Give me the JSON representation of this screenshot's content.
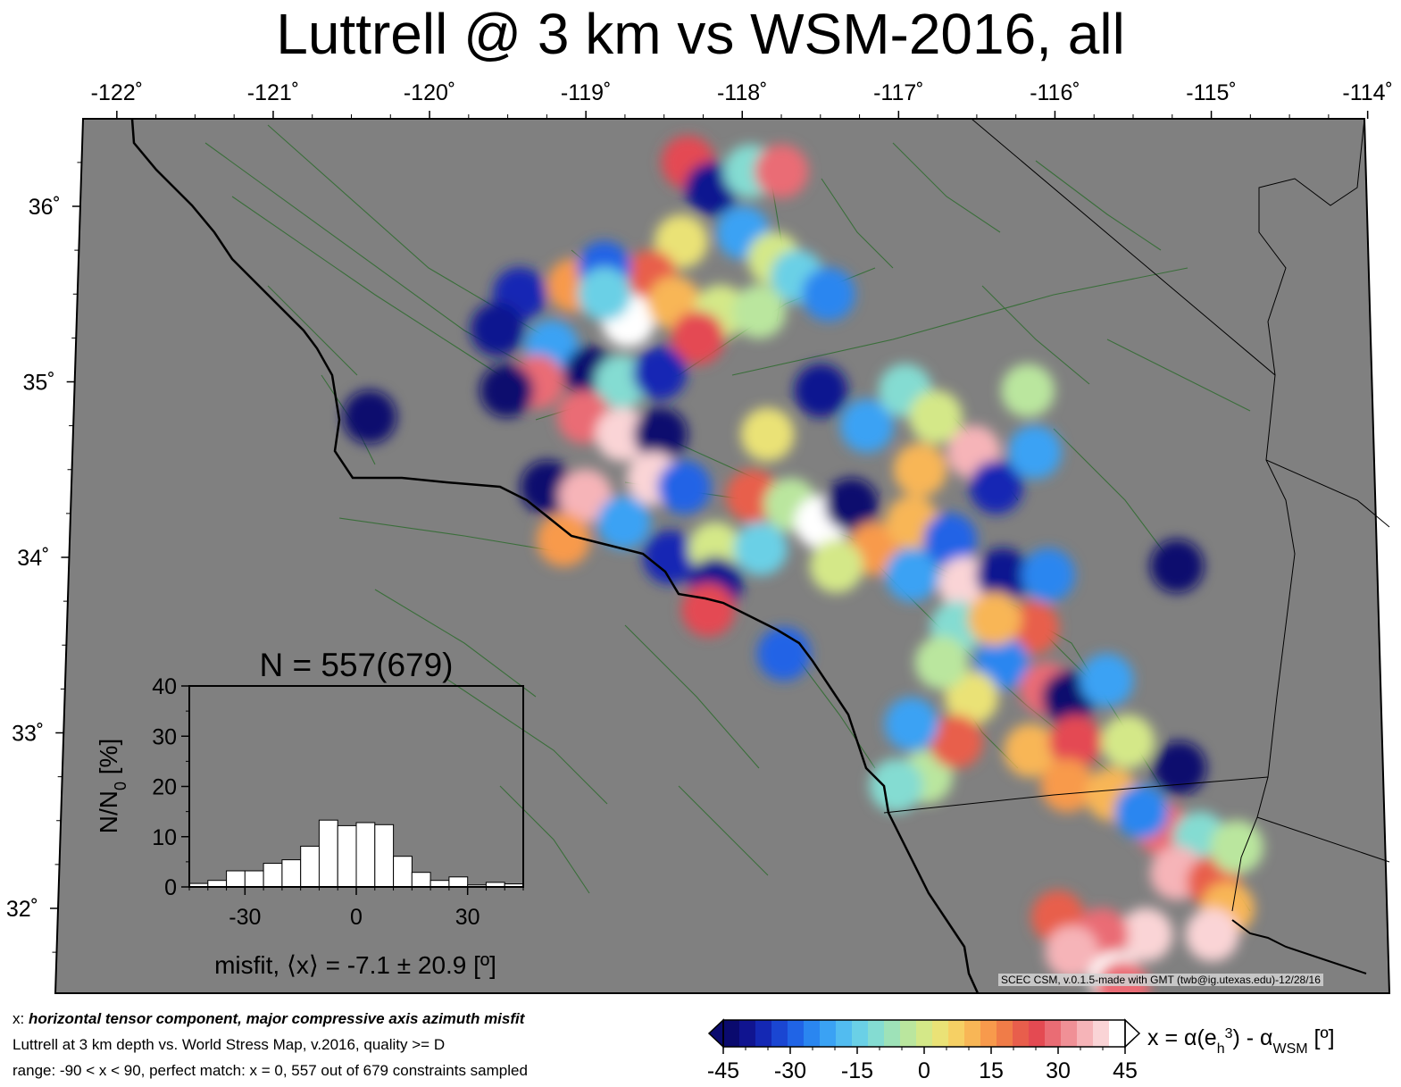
{
  "title": "Luttrell @ 3 km vs WSM-2016, all",
  "map": {
    "lon_ticks": [
      {
        "value": -122,
        "label": "-122˚"
      },
      {
        "value": -121,
        "label": "-121˚"
      },
      {
        "value": -120,
        "label": "-120˚"
      },
      {
        "value": -119,
        "label": "-119˚"
      },
      {
        "value": -118,
        "label": "-118˚"
      },
      {
        "value": -117,
        "label": "-117˚"
      },
      {
        "value": -116,
        "label": "-116˚"
      },
      {
        "value": -115,
        "label": "-115˚"
      },
      {
        "value": -114,
        "label": "-114˚"
      }
    ],
    "lat_ticks": [
      {
        "value": 36,
        "label": "36˚"
      },
      {
        "value": 35,
        "label": "35˚"
      },
      {
        "value": 34,
        "label": "34˚"
      },
      {
        "value": 33,
        "label": "33˚"
      },
      {
        "value": 32,
        "label": "32˚"
      }
    ],
    "background_color": "#808080",
    "fault_color": "#2e6b2e",
    "coast_color": "#000000",
    "credit": "SCEC CSM, v.0.1.5-made with GMT (twb@ig.utexas.edu)-12/28/16"
  },
  "histogram": {
    "title": "N = 557(679)",
    "ylabel_main": "N/N",
    "ylabel_sub": "0",
    "ylabel_unit": " [%]",
    "xlabel": "misfit, ⟨x⟩ = -7.1 ± 20.9 [º]",
    "xlim": [
      -45,
      45
    ],
    "ylim": [
      0,
      40
    ],
    "x_ticks": [
      {
        "value": -30,
        "label": "-30"
      },
      {
        "value": 0,
        "label": "0"
      },
      {
        "value": 30,
        "label": "30"
      }
    ],
    "y_ticks": [
      {
        "value": 0,
        "label": "0"
      },
      {
        "value": 10,
        "label": "10"
      },
      {
        "value": 20,
        "label": "20"
      },
      {
        "value": 30,
        "label": "30"
      },
      {
        "value": 40,
        "label": "40"
      }
    ],
    "bin_width": 5,
    "bins": [
      {
        "start": -45,
        "value": 0.7
      },
      {
        "start": -40,
        "value": 1.3
      },
      {
        "start": -35,
        "value": 3.2
      },
      {
        "start": -30,
        "value": 3.2
      },
      {
        "start": -25,
        "value": 4.7
      },
      {
        "start": -20,
        "value": 5.4
      },
      {
        "start": -15,
        "value": 8.1
      },
      {
        "start": -10,
        "value": 13.3
      },
      {
        "start": -5,
        "value": 12.2
      },
      {
        "start": 0,
        "value": 12.8
      },
      {
        "start": 5,
        "value": 12.4
      },
      {
        "start": 10,
        "value": 6.1
      },
      {
        "start": 15,
        "value": 2.9
      },
      {
        "start": 20,
        "value": 1.3
      },
      {
        "start": 25,
        "value": 2.0
      },
      {
        "start": 30,
        "value": 0.4
      },
      {
        "start": 35,
        "value": 0.9
      },
      {
        "start": 40,
        "value": 0.6
      }
    ]
  },
  "colorbar": {
    "label_prefix": "x = α(e",
    "label_sub": "h",
    "label_sup": "3",
    "label_mid": ") - α",
    "label_sub2": "WSM",
    "label_unit": " [º]",
    "range": [
      -45,
      45
    ],
    "ticks": [
      {
        "value": -45,
        "label": "-45"
      },
      {
        "value": -30,
        "label": "-30"
      },
      {
        "value": -15,
        "label": "-15"
      },
      {
        "value": 0,
        "label": "0"
      },
      {
        "value": 15,
        "label": "15"
      },
      {
        "value": 30,
        "label": "30"
      },
      {
        "value": 45,
        "label": "45"
      }
    ],
    "colors": [
      "#0a0a6e",
      "#101490",
      "#1428b4",
      "#1a46d2",
      "#2064e6",
      "#2a86f0",
      "#3aa2f4",
      "#52bcf0",
      "#6ad0e6",
      "#84dcd2",
      "#9ee2b8",
      "#bae69e",
      "#d4e888",
      "#eae276",
      "#f6d064",
      "#f8b656",
      "#f89a4c",
      "#f07c48",
      "#e85e4c",
      "#e44a52",
      "#ea6c74",
      "#f09096",
      "#f6b4b8",
      "#fad4d6",
      "#ffffff"
    ]
  },
  "captions": {
    "line1_prefix": "x: ",
    "line1_emphasis": "horizontal tensor component, major compressive axis azimuth misfit",
    "line2": "Luttrell at 3 km depth vs.  World Stress Map, v.2016, quality >= D",
    "line3": "range: -90 < x < 90, perfect match: x = 0, 557 out of 679 constraints sampled"
  },
  "misfit_patches": [
    {
      "lon": -118.35,
      "lat": 36.25,
      "misfit": 25
    },
    {
      "lon": -118.2,
      "lat": 36.1,
      "misfit": -40
    },
    {
      "lon": -117.95,
      "lat": 36.2,
      "misfit": -10
    },
    {
      "lon": -117.75,
      "lat": 36.2,
      "misfit": 30
    },
    {
      "lon": -118.4,
      "lat": 35.8,
      "misfit": 5
    },
    {
      "lon": -118.0,
      "lat": 35.85,
      "misfit": -20
    },
    {
      "lon": -117.8,
      "lat": 35.7,
      "misfit": 0
    },
    {
      "lon": -117.65,
      "lat": 35.6,
      "misfit": -15
    },
    {
      "lon": -118.6,
      "lat": 35.6,
      "misfit": 20
    },
    {
      "lon": -118.75,
      "lat": 35.35,
      "misfit": 45
    },
    {
      "lon": -118.45,
      "lat": 35.45,
      "misfit": 10
    },
    {
      "lon": -118.15,
      "lat": 35.4,
      "misfit": 0
    },
    {
      "lon": -117.9,
      "lat": 35.4,
      "misfit": -5
    },
    {
      "lon": -118.3,
      "lat": 35.25,
      "misfit": 25
    },
    {
      "lon": -119.1,
      "lat": 35.55,
      "misfit": 15
    },
    {
      "lon": -118.9,
      "lat": 35.65,
      "misfit": -30
    },
    {
      "lon": -119.45,
      "lat": 35.5,
      "misfit": -35
    },
    {
      "lon": -119.6,
      "lat": 35.3,
      "misfit": -40
    },
    {
      "lon": -119.25,
      "lat": 35.2,
      "misfit": -20
    },
    {
      "lon": -119.0,
      "lat": 35.05,
      "misfit": -45
    },
    {
      "lon": -119.35,
      "lat": 35.0,
      "misfit": 30
    },
    {
      "lon": -118.8,
      "lat": 35.0,
      "misfit": -10
    },
    {
      "lon": -119.55,
      "lat": 34.95,
      "misfit": -45
    },
    {
      "lon": -118.55,
      "lat": 35.05,
      "misfit": -35
    },
    {
      "lon": -119.05,
      "lat": 34.8,
      "misfit": 30
    },
    {
      "lon": -118.8,
      "lat": 34.7,
      "misfit": 40
    },
    {
      "lon": -118.55,
      "lat": 34.7,
      "misfit": -45
    },
    {
      "lon": -120.45,
      "lat": 34.8,
      "misfit": -45
    },
    {
      "lon": -119.3,
      "lat": 34.4,
      "misfit": -45
    },
    {
      "lon": -119.05,
      "lat": 34.35,
      "misfit": 35
    },
    {
      "lon": -119.2,
      "lat": 34.1,
      "misfit": 15
    },
    {
      "lon": -118.8,
      "lat": 34.2,
      "misfit": -20
    },
    {
      "lon": -118.6,
      "lat": 34.45,
      "misfit": 40
    },
    {
      "lon": -118.4,
      "lat": 34.4,
      "misfit": -30
    },
    {
      "lon": -118.5,
      "lat": 34.0,
      "misfit": -35
    },
    {
      "lon": -118.2,
      "lat": 34.05,
      "misfit": 0
    },
    {
      "lon": -118.2,
      "lat": 33.85,
      "misfit": -40
    },
    {
      "lon": -118.25,
      "lat": 33.7,
      "misfit": 25
    },
    {
      "lon": -117.95,
      "lat": 34.35,
      "misfit": 20
    },
    {
      "lon": -117.9,
      "lat": 34.05,
      "misfit": -15
    },
    {
      "lon": -117.7,
      "lat": 34.3,
      "misfit": -5
    },
    {
      "lon": -117.5,
      "lat": 34.2,
      "misfit": 45
    },
    {
      "lon": -117.3,
      "lat": 34.3,
      "misfit": -45
    },
    {
      "lon": -117.15,
      "lat": 34.05,
      "misfit": 15
    },
    {
      "lon": -117.4,
      "lat": 33.95,
      "misfit": 0
    },
    {
      "lon": -116.9,
      "lat": 34.2,
      "misfit": 10
    },
    {
      "lon": -116.9,
      "lat": 33.9,
      "misfit": -20
    },
    {
      "lon": -116.65,
      "lat": 34.1,
      "misfit": -30
    },
    {
      "lon": -116.55,
      "lat": 33.85,
      "misfit": 40
    },
    {
      "lon": -116.3,
      "lat": 33.9,
      "misfit": -40
    },
    {
      "lon": -116.5,
      "lat": 34.6,
      "misfit": 35
    },
    {
      "lon": -116.35,
      "lat": 34.4,
      "misfit": -35
    },
    {
      "lon": -116.1,
      "lat": 34.6,
      "misfit": -20
    },
    {
      "lon": -116.0,
      "lat": 33.9,
      "misfit": -25
    },
    {
      "lon": -116.85,
      "lat": 34.5,
      "misfit": 10
    },
    {
      "lon": -116.1,
      "lat": 33.6,
      "misfit": 20
    },
    {
      "lon": -116.6,
      "lat": 33.6,
      "misfit": -10
    },
    {
      "lon": -116.3,
      "lat": 33.4,
      "misfit": -25
    },
    {
      "lon": -116.0,
      "lat": 33.25,
      "misfit": 30
    },
    {
      "lon": -115.85,
      "lat": 33.2,
      "misfit": -45
    },
    {
      "lon": -115.6,
      "lat": 33.3,
      "misfit": -20
    },
    {
      "lon": -116.5,
      "lat": 33.2,
      "misfit": 5
    },
    {
      "lon": -116.1,
      "lat": 32.9,
      "misfit": 10
    },
    {
      "lon": -115.8,
      "lat": 32.95,
      "misfit": 25
    },
    {
      "lon": -115.45,
      "lat": 32.95,
      "misfit": 0
    },
    {
      "lon": -115.85,
      "lat": 32.7,
      "misfit": 15
    },
    {
      "lon": -115.55,
      "lat": 32.65,
      "misfit": 10
    },
    {
      "lon": -116.8,
      "lat": 32.75,
      "misfit": -5
    },
    {
      "lon": -116.6,
      "lat": 32.95,
      "misfit": 20
    },
    {
      "lon": -115.1,
      "lat": 32.8,
      "misfit": -45
    },
    {
      "lon": -115.2,
      "lat": 32.45,
      "misfit": 30
    },
    {
      "lon": -114.95,
      "lat": 32.4,
      "misfit": -10
    },
    {
      "lon": -115.1,
      "lat": 32.2,
      "misfit": 35
    },
    {
      "lon": -114.85,
      "lat": 32.15,
      "misfit": 20
    },
    {
      "lon": -114.75,
      "lat": 32.0,
      "misfit": 10
    },
    {
      "lon": -114.85,
      "lat": 31.85,
      "misfit": 40
    },
    {
      "lon": -115.35,
      "lat": 32.55,
      "misfit": -25
    },
    {
      "lon": -114.7,
      "lat": 32.35,
      "misfit": -5
    },
    {
      "lon": -117.45,
      "lat": 35.5,
      "misfit": -25
    },
    {
      "lon": -117.5,
      "lat": 34.95,
      "misfit": -40
    },
    {
      "lon": -117.2,
      "lat": 34.75,
      "misfit": -20
    },
    {
      "lon": -116.95,
      "lat": 34.95,
      "misfit": -10
    },
    {
      "lon": -116.75,
      "lat": 34.8,
      "misfit": 0
    },
    {
      "lon": -116.15,
      "lat": 34.95,
      "misfit": -5
    },
    {
      "lon": -115.15,
      "lat": 33.95,
      "misfit": -45
    },
    {
      "lon": -117.85,
      "lat": 34.7,
      "misfit": 5
    },
    {
      "lon": -117.75,
      "lat": 33.45,
      "misfit": -30
    },
    {
      "lon": -118.9,
      "lat": 35.5,
      "misfit": -15
    },
    {
      "lon": -116.9,
      "lat": 33.05,
      "misfit": -20
    },
    {
      "lon": -115.3,
      "lat": 31.85,
      "misfit": 40
    },
    {
      "lon": -115.9,
      "lat": 31.95,
      "misfit": 20
    },
    {
      "lon": -115.6,
      "lat": 31.85,
      "misfit": 30
    },
    {
      "lon": -115.8,
      "lat": 31.75,
      "misfit": 35
    },
    {
      "lon": -115.5,
      "lat": 31.6,
      "misfit": 45
    },
    {
      "lon": -115.45,
      "lat": 31.55,
      "misfit": 30
    },
    {
      "lon": -117.0,
      "lat": 32.7,
      "misfit": -10
    },
    {
      "lon": -116.7,
      "lat": 33.4,
      "misfit": -5
    },
    {
      "lon": -116.35,
      "lat": 33.65,
      "misfit": 10
    }
  ]
}
